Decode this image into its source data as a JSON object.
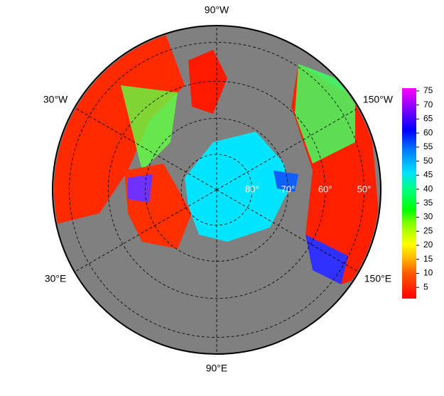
{
  "map": {
    "longitudes": [
      {
        "value": -90,
        "label": "90°W"
      },
      {
        "value": -30,
        "label": "30°W"
      },
      {
        "value": -150,
        "label": "150°W"
      },
      {
        "value": 30,
        "label": "30°E"
      },
      {
        "value": 150,
        "label": "150°E"
      },
      {
        "value": 90,
        "label": "90°E"
      }
    ],
    "latitudes": [
      {
        "value": 80,
        "label": "80°"
      },
      {
        "value": 70,
        "label": "70°"
      },
      {
        "value": 60,
        "label": "60°"
      },
      {
        "value": 50,
        "label": "50°"
      }
    ],
    "colorbar": {
      "range": [
        1,
        76
      ],
      "ticks": [
        5,
        10,
        15,
        20,
        25,
        30,
        35,
        40,
        45,
        50,
        55,
        60,
        65,
        70,
        75
      ]
    }
  }
}
